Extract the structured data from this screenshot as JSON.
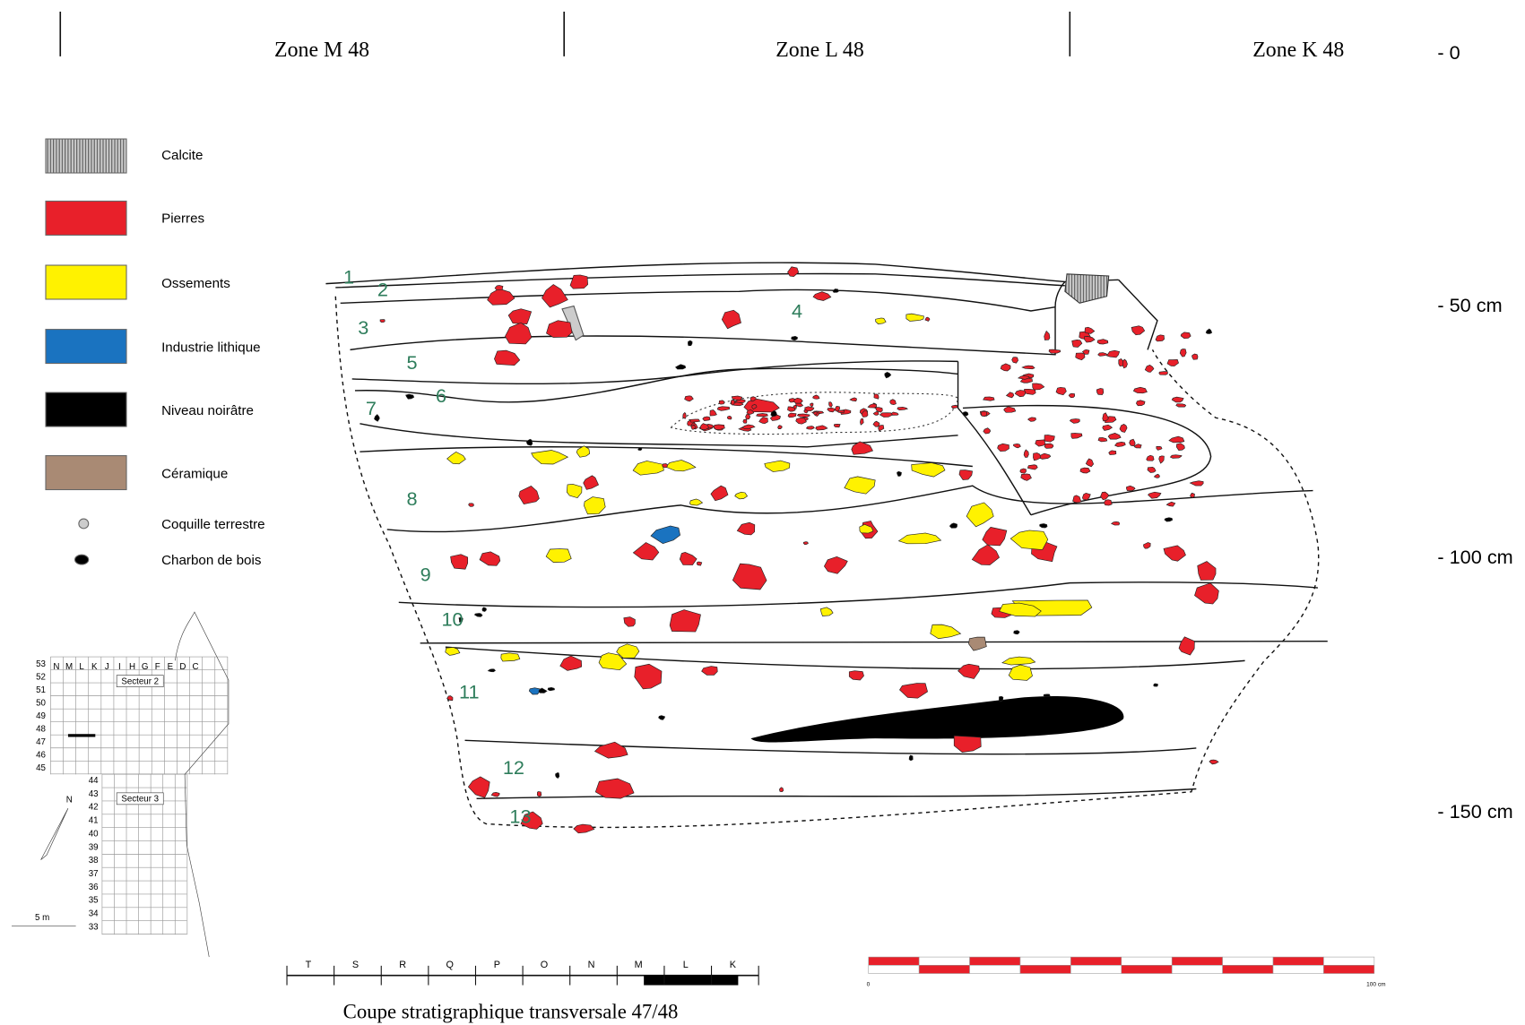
{
  "zones": [
    "Zone M 48",
    "Zone L 48",
    "Zone K 48"
  ],
  "depth_labels": [
    "- 0",
    "- 50 cm",
    "- 100 cm",
    "- 150 cm"
  ],
  "legend": [
    "Calcite",
    "Pierres",
    "Ossements",
    "Industrie lithique",
    "Niveau noirâtre",
    "Céramique",
    "Coquille terrestre",
    "Charbon de bois"
  ],
  "layers": [
    "1",
    "2",
    "3",
    "4",
    "5",
    "6",
    "7",
    "8",
    "9",
    "10",
    "11",
    "12",
    "13"
  ],
  "map": {
    "columns": [
      "N",
      "M",
      "L",
      "K",
      "J",
      "I",
      "H",
      "G",
      "F",
      "E",
      "D",
      "C"
    ],
    "rows_top": [
      "53",
      "52",
      "51",
      "50",
      "49",
      "48",
      "47",
      "46",
      "45"
    ],
    "rows_bottom": [
      "44",
      "43",
      "42",
      "41",
      "40",
      "39",
      "38",
      "37",
      "36",
      "35",
      "34",
      "33"
    ],
    "sectors": [
      "Secteur 2",
      "Secteur 3"
    ],
    "north": "N",
    "scale": "5 m"
  },
  "scale_bar": {
    "letters": [
      "T",
      "S",
      "R",
      "Q",
      "P",
      "O",
      "N",
      "M",
      "L",
      "K"
    ]
  },
  "scale_red": {
    "start": "0",
    "end": "100 cm"
  },
  "caption": "Coupe stratigraphique transversale 47/48"
}
